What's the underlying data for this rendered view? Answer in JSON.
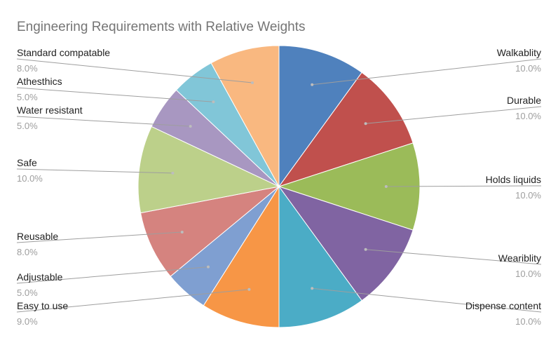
{
  "chart_data": {
    "type": "pie",
    "title": "Engineering Requirements with Relative Weights",
    "slices": [
      {
        "label": "Walkablity",
        "value": 10.0,
        "display": "10.0%",
        "color": "#4f81bd"
      },
      {
        "label": "Durable",
        "value": 10.0,
        "display": "10.0%",
        "color": "#c0504d"
      },
      {
        "label": "Holds liquids",
        "value": 10.0,
        "display": "10.0%",
        "color": "#9bbb59"
      },
      {
        "label": "Weariblity",
        "value": 10.0,
        "display": "10.0%",
        "color": "#8064a2"
      },
      {
        "label": "Dispense content",
        "value": 10.0,
        "display": "10.0%",
        "color": "#4bacc6"
      },
      {
        "label": "Easy to use",
        "value": 9.0,
        "display": "9.0%",
        "color": "#f79646"
      },
      {
        "label": "Adjustable",
        "value": 5.0,
        "display": "5.0%",
        "color": "#7f9fd1"
      },
      {
        "label": "Reusable",
        "value": 8.0,
        "display": "8.0%",
        "color": "#d5837f"
      },
      {
        "label": "Safe",
        "value": 10.0,
        "display": "10.0%",
        "color": "#bcd08a"
      },
      {
        "label": "Water resistant",
        "value": 5.0,
        "display": "5.0%",
        "color": "#a897c1"
      },
      {
        "label": "Athesthics",
        "value": 5.0,
        "display": "5.0%",
        "color": "#81c6d8"
      },
      {
        "label": "Standard compatable",
        "value": 8.0,
        "display": "8.0%",
        "color": "#f9b880"
      }
    ]
  }
}
